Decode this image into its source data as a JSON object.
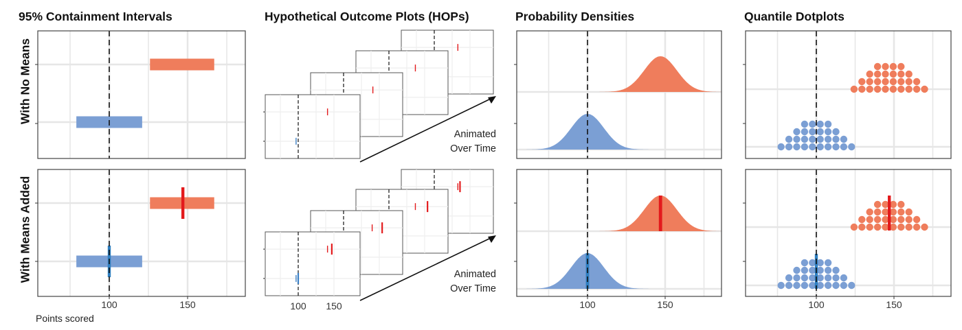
{
  "colors": {
    "blue": "#7b9fd4",
    "orange": "#ef7d5c",
    "red": "#e31a1c",
    "mean_blue": "#2f7fc1",
    "hop_blue": "#3b7fc4",
    "grid": "#e6e6e6",
    "panel_border": "#444444",
    "dashed_line": "#111111"
  },
  "titles": {
    "intervals": "95% Containment Intervals",
    "hops": "Hypothetical Outcome Plots (HOPs)",
    "densities": "Probability Densities",
    "dotplots": "Quantile Dotplots"
  },
  "row_labels": {
    "top": "With No Means",
    "bottom": "With Means Added"
  },
  "x_axis": {
    "label": "Points scored",
    "ticks": [
      "100",
      "150"
    ]
  },
  "hops_caption": {
    "line1": "Animated",
    "line2": "Over Time"
  },
  "chart_data": [
    {
      "type": "interval",
      "title": "95% Containment Intervals",
      "xlabel": "Points scored",
      "x_ticks": [
        100,
        150
      ],
      "reference_line": 100,
      "rows": [
        {
          "row": "With No Means",
          "series": [
            {
              "color": "orange",
              "low": 126,
              "high": 167
            },
            {
              "color": "blue",
              "low": 79,
              "high": 121
            }
          ]
        },
        {
          "row": "With Means Added",
          "series": [
            {
              "color": "orange",
              "low": 126,
              "high": 167,
              "mean": 147
            },
            {
              "color": "blue",
              "low": 79,
              "high": 121,
              "mean": 100
            }
          ]
        }
      ]
    },
    {
      "type": "hops",
      "title": "Hypothetical Outcome Plots (HOPs)",
      "x_ticks": [
        100,
        150
      ],
      "rows": [
        {
          "row": "With No Means",
          "frames": [
            {
              "orange": 141,
              "blue": 97
            },
            {
              "orange": 141
            },
            {
              "orange": 137
            },
            {
              "orange": 133
            }
          ]
        },
        {
          "row": "With Means Added",
          "frames": [
            {
              "orange": [
                141,
                147
              ],
              "blue": [
                97,
                100
              ]
            },
            {
              "orange": [
                140,
                154
              ]
            },
            {
              "orange": [
                137,
                154
              ]
            },
            {
              "orange": [
                133,
                136
              ]
            }
          ]
        }
      ]
    },
    {
      "type": "area",
      "title": "Probability Densities",
      "x_ticks": [
        100,
        150
      ],
      "reference_line": 100,
      "rows": [
        {
          "row": "With No Means",
          "series": [
            {
              "color": "orange",
              "mean": 147,
              "sd": 10.5
            },
            {
              "color": "blue",
              "mean": 100,
              "sd": 10.5
            }
          ]
        },
        {
          "row": "With Means Added",
          "series": [
            {
              "color": "orange",
              "mean": 147,
              "sd": 10.5,
              "show_mean": true
            },
            {
              "color": "blue",
              "mean": 100,
              "sd": 10.5,
              "show_mean": true
            }
          ]
        }
      ]
    },
    {
      "type": "dotplot",
      "title": "Quantile Dotplots",
      "x_ticks": [
        100,
        150
      ],
      "reference_line": 100,
      "column_counts": [
        1,
        2,
        3,
        4,
        4,
        3,
        2,
        1
      ],
      "rows": [
        {
          "row": "With No Means",
          "series": [
            {
              "color": "orange",
              "center": 147
            },
            {
              "color": "blue",
              "center": 100
            }
          ]
        },
        {
          "row": "With Means Added",
          "series": [
            {
              "color": "orange",
              "center": 147,
              "show_mean": true
            },
            {
              "color": "blue",
              "center": 100,
              "show_mean": true
            }
          ]
        }
      ]
    }
  ]
}
